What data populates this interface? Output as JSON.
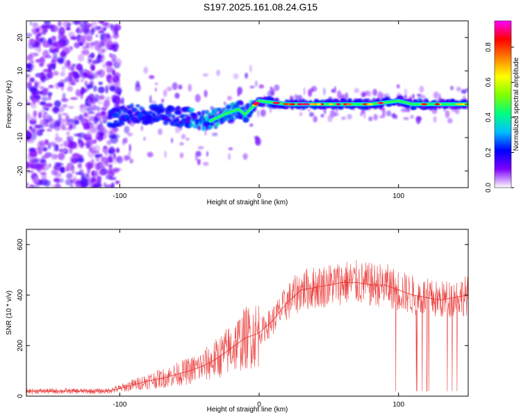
{
  "title": "S197.2025.161.08.24.G15",
  "chart_data": [
    {
      "type": "heatmap",
      "xlabel": "Height of straight line (km)",
      "ylabel": "Frequency (Hz)",
      "xlim": [
        -167,
        150
      ],
      "ylim": [
        -25,
        25
      ],
      "x_ticks": [
        -100,
        0,
        100
      ],
      "x_tick_labels": [
        "-100",
        "0",
        "100"
      ],
      "y_ticks": [
        -20,
        -10,
        0,
        10,
        20
      ],
      "y_tick_labels": [
        "-20",
        "-10",
        "0",
        "10",
        "20"
      ],
      "grid": false,
      "colorbar": {
        "label": "Normalized spectral amplitude",
        "range": [
          0,
          0.95
        ],
        "ticks": [
          0.0,
          0.2,
          0.4,
          0.6,
          0.8
        ],
        "tick_labels": [
          "0.0",
          "0.2",
          "0.4",
          "0.6",
          "0.8"
        ],
        "colormap": [
          "#ffffff",
          "#7f00ff",
          "#0000ff",
          "#00bfff",
          "#00ff80",
          "#7fff00",
          "#ffff00",
          "#ff8000",
          "#ff0000",
          "#ff00ff"
        ]
      },
      "ridge": {
        "x": [
          -107,
          -90,
          -70,
          -50,
          -35,
          -25,
          -15,
          -10,
          -5,
          0,
          20,
          40,
          60,
          80,
          90,
          100,
          110,
          130,
          148
        ],
        "frequency": [
          -4,
          -3,
          -3,
          -4,
          -5,
          -3,
          -1.5,
          -3,
          -1,
          1,
          0,
          0,
          0,
          0,
          0.5,
          1,
          0,
          0,
          0
        ]
      }
    },
    {
      "type": "line",
      "xlabel": "Height of straight line (km)",
      "ylabel": "SNR (10 * v/v)",
      "xlim": [
        -167,
        150
      ],
      "ylim": [
        0,
        660
      ],
      "x_ticks": [
        -100,
        0,
        100
      ],
      "x_tick_labels": [
        "-100",
        "0",
        "100"
      ],
      "y_ticks": [
        0,
        200,
        400,
        600
      ],
      "y_tick_labels": [
        "0",
        "200",
        "400",
        "600"
      ],
      "grid": false,
      "line_color": "#e8312f",
      "series": [
        {
          "x": [
            -167,
            -150,
            -130,
            -110,
            -100,
            -90,
            -80,
            -70,
            -60,
            -50,
            -40,
            -30,
            -20,
            -10,
            0,
            10,
            20,
            30,
            40,
            50,
            60,
            70,
            80,
            90,
            100,
            110,
            120,
            130,
            140,
            150
          ],
          "values": [
            20,
            20,
            20,
            20,
            30,
            45,
            60,
            70,
            85,
            100,
            120,
            150,
            190,
            230,
            250,
            300,
            370,
            420,
            430,
            440,
            450,
            450,
            440,
            440,
            420,
            400,
            390,
            380,
            390,
            400
          ]
        }
      ]
    }
  ]
}
